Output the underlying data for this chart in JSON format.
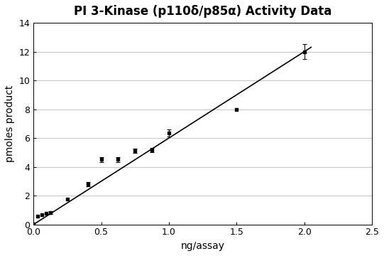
{
  "title": "PI 3-Kinase (p110δ/p85α) Activity Data",
  "xlabel": "ng/assay",
  "ylabel": "pmoles product",
  "xlim": [
    0,
    2.5
  ],
  "ylim": [
    0,
    14
  ],
  "xticks": [
    0,
    0.5,
    1.0,
    1.5,
    2.0,
    2.5
  ],
  "yticks": [
    0,
    2,
    4,
    6,
    8,
    10,
    12,
    14
  ],
  "data_x": [
    0.0,
    0.031,
    0.063,
    0.094,
    0.125,
    0.25,
    0.4,
    0.5,
    0.625,
    0.75,
    0.875,
    1.0,
    1.5,
    2.0
  ],
  "data_y": [
    0.05,
    0.55,
    0.65,
    0.75,
    0.8,
    1.75,
    2.8,
    4.5,
    4.5,
    5.1,
    5.15,
    6.35,
    8.0,
    12.0
  ],
  "data_yerr": [
    0.0,
    0.0,
    0.0,
    0.0,
    0.1,
    0.0,
    0.15,
    0.15,
    0.15,
    0.15,
    0.15,
    0.25,
    0.0,
    0.5
  ],
  "line_x": [
    0.0,
    2.05
  ],
  "line_y": [
    0.0,
    12.3
  ],
  "marker_color": "black",
  "line_color": "black",
  "plot_bg_color": "#ffffff",
  "fig_bg_color": "#ffffff",
  "grid_color": "#c8c8c8",
  "title_fontsize": 12,
  "label_fontsize": 10,
  "tick_fontsize": 9
}
